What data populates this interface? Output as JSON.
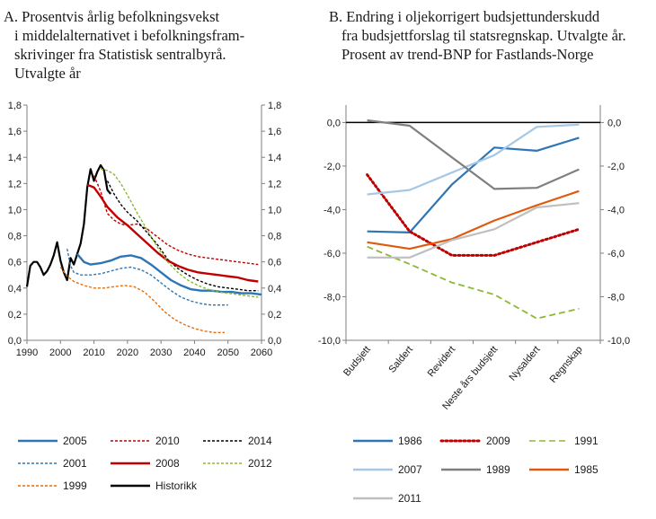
{
  "chart_data": [
    {
      "id": "A",
      "type": "line",
      "title_lines": [
        "A. Prosentvis årlig befolkningsvekst",
        "i middelalternativet i befolkningsfram-",
        "skrivinger fra Statistisk sentralbyrå.",
        "Utvalgte år"
      ],
      "xlim": [
        1990,
        2060
      ],
      "ylim": [
        0,
        1.8
      ],
      "x_ticks": [
        1990,
        2000,
        2010,
        2020,
        2030,
        2040,
        2050,
        2060
      ],
      "y_ticks": [
        0,
        0.2,
        0.4,
        0.6,
        0.8,
        1.0,
        1.2,
        1.4,
        1.6,
        1.8
      ],
      "y_tick_labels": [
        "0,0",
        "0,2",
        "0,4",
        "0,6",
        "0,8",
        "1,0",
        "1,2",
        "1,4",
        "1,6",
        "1,8"
      ],
      "legend_order": [
        "2005",
        "2010",
        "2014",
        "2001",
        "2008",
        "2012",
        "1999",
        "Historikk"
      ],
      "series": [
        {
          "name": "Historikk",
          "color": "#000000",
          "dash": "solid",
          "x": [
            1990,
            1991,
            1992,
            1993,
            1994,
            1995,
            1996,
            1997,
            1998,
            1999,
            2000,
            2001,
            2002,
            2003,
            2004,
            2005,
            2006,
            2007,
            2008,
            2009,
            2010,
            2011,
            2012,
            2013,
            2014,
            2015
          ],
          "y": [
            0.41,
            0.57,
            0.6,
            0.6,
            0.56,
            0.5,
            0.53,
            0.58,
            0.65,
            0.75,
            0.61,
            0.52,
            0.46,
            0.63,
            0.58,
            0.66,
            0.74,
            0.89,
            1.17,
            1.31,
            1.22,
            1.29,
            1.34,
            1.3,
            1.15,
            1.12
          ]
        },
        {
          "name": "2005",
          "color": "#2e75b6",
          "dash": "solid",
          "x": [
            2005,
            2007,
            2009,
            2012,
            2015,
            2018,
            2021,
            2024,
            2027,
            2030,
            2033,
            2036,
            2039,
            2042,
            2045,
            2048,
            2051,
            2054,
            2057,
            2060
          ],
          "y": [
            0.66,
            0.6,
            0.58,
            0.59,
            0.61,
            0.64,
            0.65,
            0.63,
            0.58,
            0.52,
            0.46,
            0.42,
            0.39,
            0.38,
            0.38,
            0.37,
            0.37,
            0.36,
            0.36,
            0.35
          ]
        },
        {
          "name": "2010",
          "color": "#c00000",
          "dash": "short",
          "x": [
            2010,
            2012,
            2014,
            2016,
            2018,
            2020,
            2023,
            2026,
            2029,
            2032,
            2035,
            2038,
            2041,
            2044,
            2047,
            2050,
            2053,
            2056,
            2059
          ],
          "y": [
            1.26,
            1.14,
            0.97,
            0.92,
            0.89,
            0.88,
            0.89,
            0.85,
            0.79,
            0.73,
            0.69,
            0.66,
            0.64,
            0.63,
            0.62,
            0.61,
            0.6,
            0.59,
            0.58
          ]
        },
        {
          "name": "2014",
          "color": "#000000",
          "dash": "short",
          "x": [
            2014,
            2016,
            2018,
            2020,
            2023,
            2026,
            2029,
            2032,
            2035,
            2038,
            2041,
            2044,
            2047,
            2050,
            2053,
            2056,
            2059
          ],
          "y": [
            1.22,
            1.12,
            1.04,
            0.98,
            0.91,
            0.82,
            0.73,
            0.62,
            0.55,
            0.5,
            0.46,
            0.43,
            0.41,
            0.4,
            0.39,
            0.38,
            0.38
          ]
        },
        {
          "name": "2001",
          "color": "#2e75b6",
          "dash": "short",
          "x": [
            2002,
            2003,
            2004,
            2006,
            2009,
            2012,
            2015,
            2018,
            2021,
            2024,
            2027,
            2030,
            2033,
            2036,
            2039,
            2042,
            2045,
            2048,
            2050
          ],
          "y": [
            0.7,
            0.57,
            0.52,
            0.5,
            0.5,
            0.51,
            0.53,
            0.55,
            0.56,
            0.54,
            0.5,
            0.44,
            0.38,
            0.33,
            0.3,
            0.28,
            0.27,
            0.27,
            0.27
          ]
        },
        {
          "name": "2008",
          "color": "#c00000",
          "dash": "solid",
          "x": [
            2008,
            2010,
            2012,
            2014,
            2017,
            2020,
            2023,
            2026,
            2029,
            2032,
            2035,
            2038,
            2041,
            2044,
            2047,
            2050,
            2053,
            2056,
            2059
          ],
          "y": [
            1.19,
            1.17,
            1.1,
            1.02,
            0.94,
            0.88,
            0.81,
            0.74,
            0.67,
            0.61,
            0.57,
            0.54,
            0.52,
            0.51,
            0.5,
            0.49,
            0.48,
            0.46,
            0.45
          ]
        },
        {
          "name": "2012",
          "color": "#8db832",
          "dash": "short",
          "x": [
            2012,
            2014,
            2016,
            2018,
            2020,
            2023,
            2026,
            2029,
            2032,
            2035,
            2038,
            2041,
            2044,
            2047,
            2050,
            2053,
            2056,
            2059
          ],
          "y": [
            1.31,
            1.3,
            1.27,
            1.2,
            1.11,
            0.97,
            0.84,
            0.71,
            0.6,
            0.52,
            0.46,
            0.42,
            0.39,
            0.37,
            0.36,
            0.35,
            0.34,
            0.33
          ]
        },
        {
          "name": "1999",
          "color": "#e46c0a",
          "dash": "short",
          "x": [
            2000,
            2002,
            2004,
            2007,
            2010,
            2013,
            2016,
            2019,
            2022,
            2025,
            2028,
            2031,
            2034,
            2037,
            2040,
            2043,
            2046,
            2049
          ],
          "y": [
            0.56,
            0.49,
            0.45,
            0.42,
            0.4,
            0.4,
            0.41,
            0.42,
            0.41,
            0.37,
            0.3,
            0.22,
            0.16,
            0.12,
            0.09,
            0.07,
            0.06,
            0.06
          ]
        }
      ]
    },
    {
      "id": "B",
      "type": "line",
      "title_lines": [
        "B. Endring i oljekorrigert budsjettunderskudd",
        "fra budsjettforslag til statsregnskap. Utvalgte år.",
        "Prosent av trend-BNP for Fastlands-Norge"
      ],
      "categories": [
        "Budsjett",
        "Saldert",
        "Revidert",
        "Neste års budsjett",
        "Nysaldert",
        "Regnskap"
      ],
      "ylim": [
        -10,
        0.8
      ],
      "y_ticks": [
        0,
        -2,
        -4,
        -6,
        -8,
        -10
      ],
      "y_tick_labels": [
        "0,0",
        "-2,0",
        "-4,0",
        "-6,0",
        "-8,0",
        "-10,0"
      ],
      "legend_order": [
        "1986",
        "2009",
        "1991",
        "2007",
        "1989",
        "1985",
        "2011"
      ],
      "series": [
        {
          "name": "1986",
          "color": "#2e75b6",
          "dash": "solid",
          "values": [
            -5.0,
            -5.05,
            -2.85,
            -1.15,
            -1.3,
            -0.7
          ]
        },
        {
          "name": "2009",
          "color": "#c00000",
          "dash": "dot",
          "values": [
            -2.4,
            -5.0,
            -6.1,
            -6.1,
            -5.5,
            -4.9
          ]
        },
        {
          "name": "1991",
          "color": "#8db832",
          "dash": "dash",
          "values": [
            -5.7,
            -6.5,
            -7.35,
            -7.9,
            -9.0,
            -8.55
          ]
        },
        {
          "name": "2007",
          "color": "#a6c8e6",
          "dash": "solid",
          "values": [
            -3.3,
            -3.1,
            -2.3,
            -1.5,
            -0.2,
            -0.1
          ]
        },
        {
          "name": "1989",
          "color": "#7f7f7f",
          "dash": "solid",
          "values": [
            0.1,
            -0.15,
            -1.6,
            -3.05,
            -3.0,
            -2.15
          ]
        },
        {
          "name": "1985",
          "color": "#e05a0c",
          "dash": "solid",
          "values": [
            -5.5,
            -5.8,
            -5.35,
            -4.5,
            -3.8,
            -3.15
          ]
        },
        {
          "name": "2011",
          "color": "#bfbfbf",
          "dash": "solid",
          "values": [
            -6.2,
            -6.2,
            -5.4,
            -4.9,
            -3.9,
            -3.7
          ]
        }
      ]
    }
  ]
}
